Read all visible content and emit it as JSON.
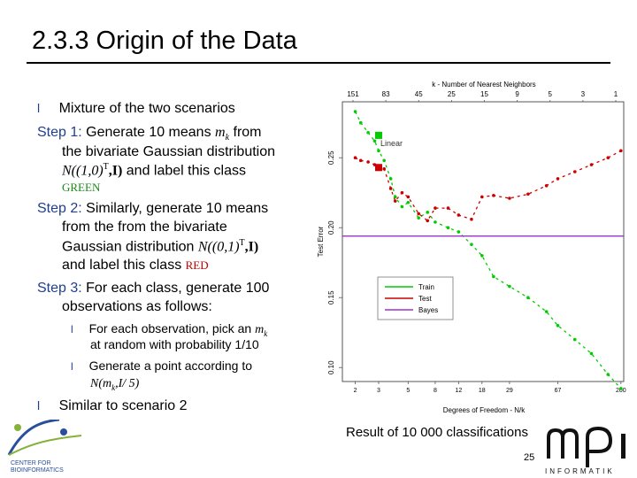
{
  "slide": {
    "title": "2.3.3 Origin of the Data",
    "caption": "Result of 10 000 classifications",
    "page_number": "25"
  },
  "text": {
    "bullet_marker": "l",
    "b1": "Mixture of the two scenarios",
    "step1_label": "Step 1:",
    "step1_a": "Generate 10 means ",
    "step1_m": "m",
    "step1_k": "k",
    "step1_b": " from",
    "step1_line2": "the bivariate Gaussian distribution",
    "step1_dist": "N((1,0)",
    "step1_T": "T",
    "step1_I": ",I)",
    "step1_tail": " and label this class",
    "step1_class": "GREEN",
    "step2_label": "Step 2:",
    "step2_a": "Similarly, generate 10 means",
    "step2_line2": "from the from the bivariate",
    "step2_line3a": "Gaussian distribution ",
    "step2_dist": "N((0,1)",
    "step2_T": "T",
    "step2_I": ",I)",
    "step2_line4": "and label this class ",
    "step2_class": "RED",
    "step3_label": "Step 3:",
    "step3_a": "For each class, generate 100",
    "step3_line2": "observations as follows:",
    "sub1_a": "For each observation, pick an ",
    "sub1_m": "m",
    "sub1_k": "k",
    "sub1_line2": "at random with probability 1/10",
    "sub2_line1": "Generate a point according to",
    "sub2_dist": "N(m",
    "sub2_k": "k",
    "sub2_rest": ",I/ 5)",
    "b2": "Similar to scenario 2"
  },
  "logos": {
    "left_text_1": "CENTER FOR",
    "left_text_2": "BIOINFORMATICS",
    "right_text": "INFORMATIK"
  },
  "colors": {
    "blue": "#1f3f8f",
    "green_label": "#1a8a1a",
    "red_label": "#c00000",
    "train": "#00cc00",
    "test": "#cc0000",
    "bayes": "#9933cc"
  },
  "chart_data": {
    "type": "line",
    "top_axis_title": "k - Number of Nearest Neighbors",
    "top_ticks": [
      "151",
      "83",
      "45",
      "25",
      "15",
      "9",
      "5",
      "3",
      "1"
    ],
    "xlabel": "Degrees of Freedom - N/k",
    "x_ticks": [
      "2",
      "3",
      "5",
      "8",
      "12",
      "18",
      "29",
      "67",
      "200"
    ],
    "ylabel": "Test Error",
    "y_ticks": [
      "0.10",
      "0.15",
      "0.20",
      "0.25"
    ],
    "ylim": [
      0.09,
      0.29
    ],
    "x_scale": "log",
    "xlim": [
      1.6,
      210
    ],
    "legend": [
      "Train",
      "Test",
      "Bayes"
    ],
    "legend_position": "bottom-left",
    "linear_label": "Linear",
    "series": [
      {
        "name": "Train",
        "x": [
          2,
          2.2,
          2.5,
          2.8,
          3,
          3.3,
          3.7,
          4,
          4.5,
          5,
          6,
          7,
          8,
          10,
          12,
          15,
          18,
          22,
          29,
          40,
          55,
          67,
          90,
          120,
          160,
          200
        ],
        "y": [
          0.283,
          0.275,
          0.268,
          0.262,
          0.255,
          0.248,
          0.235,
          0.222,
          0.215,
          0.218,
          0.207,
          0.211,
          0.204,
          0.2,
          0.197,
          0.188,
          0.18,
          0.165,
          0.158,
          0.15,
          0.14,
          0.13,
          0.12,
          0.11,
          0.095,
          0.085
        ]
      },
      {
        "name": "Test",
        "x": [
          2,
          2.2,
          2.5,
          2.8,
          3,
          3.3,
          3.7,
          4,
          4.5,
          5,
          6,
          7,
          8,
          10,
          12,
          15,
          18,
          22,
          29,
          40,
          55,
          67,
          90,
          120,
          160,
          200
        ],
        "y": [
          0.25,
          0.248,
          0.247,
          0.245,
          0.243,
          0.242,
          0.228,
          0.219,
          0.225,
          0.222,
          0.21,
          0.205,
          0.214,
          0.214,
          0.209,
          0.206,
          0.222,
          0.223,
          0.221,
          0.224,
          0.23,
          0.235,
          0.24,
          0.245,
          0.25,
          0.255
        ]
      },
      {
        "name": "Bayes",
        "x": [
          1.6,
          210
        ],
        "y": [
          0.194,
          0.194
        ]
      }
    ],
    "markers": [
      {
        "name": "Linear",
        "series": "Train",
        "x": 3,
        "y": 0.266
      },
      {
        "series": "Test",
        "x": 3,
        "y": 0.243
      }
    ]
  }
}
